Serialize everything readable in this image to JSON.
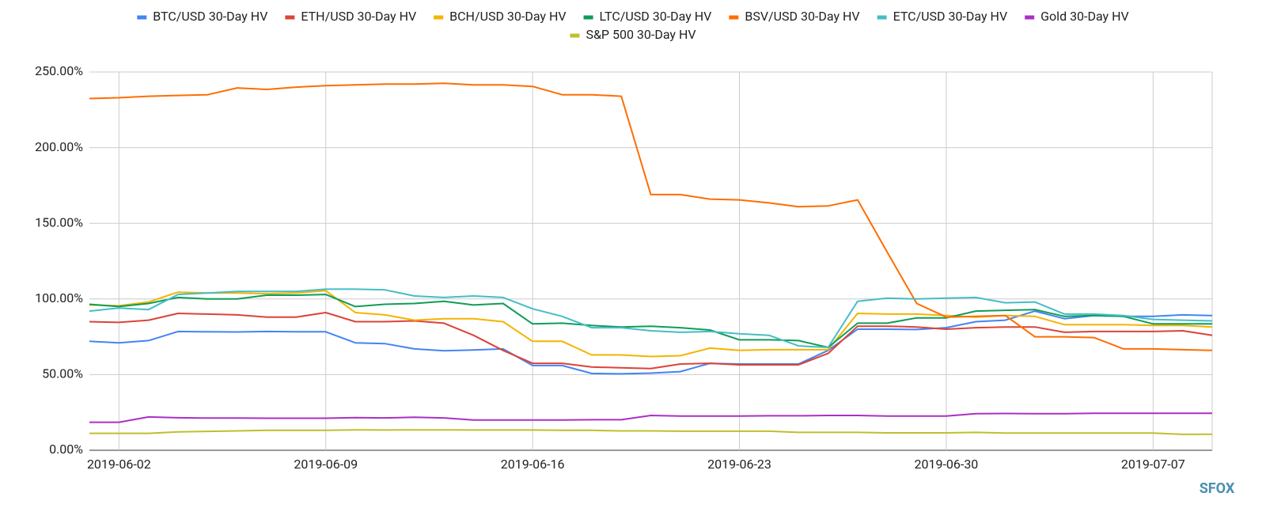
{
  "chart_data": {
    "type": "line",
    "x": [
      "2019-06-01",
      "2019-06-02",
      "2019-06-03",
      "2019-06-04",
      "2019-06-05",
      "2019-06-06",
      "2019-06-07",
      "2019-06-08",
      "2019-06-09",
      "2019-06-10",
      "2019-06-11",
      "2019-06-12",
      "2019-06-13",
      "2019-06-14",
      "2019-06-15",
      "2019-06-16",
      "2019-06-17",
      "2019-06-18",
      "2019-06-19",
      "2019-06-20",
      "2019-06-21",
      "2019-06-22",
      "2019-06-23",
      "2019-06-24",
      "2019-06-25",
      "2019-06-26",
      "2019-06-27",
      "2019-06-28",
      "2019-06-29",
      "2019-06-30",
      "2019-07-01",
      "2019-07-02",
      "2019-07-03",
      "2019-07-04",
      "2019-07-05",
      "2019-07-06",
      "2019-07-07",
      "2019-07-08",
      "2019-07-09"
    ],
    "xticks": [
      "2019-06-02",
      "2019-06-09",
      "2019-06-16",
      "2019-06-23",
      "2019-06-30",
      "2019-07-07"
    ],
    "ylim": [
      0,
      250
    ],
    "yticks": [
      {
        "value": 0,
        "label": "0.00%"
      },
      {
        "value": 50,
        "label": "50.00%"
      },
      {
        "value": 100,
        "label": "100.00%"
      },
      {
        "value": 150,
        "label": "150.00%"
      },
      {
        "value": 200,
        "label": "200.00%"
      },
      {
        "value": 250,
        "label": "250.00%"
      }
    ],
    "grid": true,
    "legend": "top",
    "series": [
      {
        "name": "BTC/USD 30-Day HV",
        "color": "#4285f4",
        "values": [
          72,
          71,
          72.5,
          78.5,
          78.3,
          78.2,
          78.5,
          78.3,
          78.3,
          71,
          70.5,
          67,
          65.8,
          66.3,
          67,
          56,
          56,
          50.8,
          50.5,
          51,
          52,
          57.5,
          57,
          57,
          57,
          66,
          80,
          80,
          79.8,
          81,
          85,
          86,
          92,
          87,
          89,
          88.5,
          88.5,
          89.5,
          89
        ]
      },
      {
        "name": "ETH/USD 30-Day HV",
        "color": "#db4437",
        "values": [
          85,
          84.5,
          86,
          90.5,
          90,
          89.5,
          88,
          88,
          91,
          85,
          85,
          85.5,
          84,
          76,
          66,
          57.5,
          57.5,
          55,
          54.5,
          54,
          57,
          57.5,
          56.5,
          56.5,
          56.5,
          64,
          82,
          82,
          81.5,
          80,
          81,
          81.5,
          81.5,
          78,
          78.5,
          78.5,
          78.5,
          79,
          76
        ]
      },
      {
        "name": "BCH/USD 30-Day HV",
        "color": "#f4b400",
        "values": [
          96,
          95.5,
          98,
          104.5,
          104,
          104,
          103.5,
          104,
          105.5,
          91,
          89.5,
          86,
          87,
          87,
          85,
          72,
          72,
          63,
          63,
          62,
          62.5,
          67.5,
          66,
          66.5,
          66.5,
          66.5,
          90.5,
          90,
          90,
          89,
          88,
          89,
          88.5,
          83,
          83,
          83,
          82.5,
          82.5,
          81.5
        ]
      },
      {
        "name": "LTC/USD 30-Day HV",
        "color": "#0f9d58",
        "values": [
          96.5,
          95,
          97,
          101,
          100,
          100,
          102.5,
          102.5,
          103,
          95,
          96.5,
          97,
          98.5,
          96,
          97,
          83.5,
          84,
          82.5,
          81.5,
          82,
          81,
          79.5,
          73,
          73,
          72.5,
          68,
          84,
          84,
          87.5,
          87.5,
          92,
          92.5,
          93,
          88.5,
          89,
          88.5,
          83.5,
          83.5,
          83.5
        ]
      },
      {
        "name": "BSV/USD 30-Day HV",
        "color": "#ff6d00",
        "values": [
          232.5,
          233,
          234,
          234.5,
          235,
          239.5,
          238.5,
          240,
          241,
          241.5,
          242,
          242,
          242.5,
          241.5,
          241.5,
          240.5,
          235,
          235,
          234,
          169,
          169,
          166,
          165.5,
          163.5,
          161,
          161.5,
          165.5,
          131,
          97,
          88,
          88.5,
          89,
          75,
          75,
          74.5,
          67,
          67,
          66.5,
          66
        ]
      },
      {
        "name": "ETC/USD 30-Day HV",
        "color": "#46bdc6",
        "values": [
          92,
          94,
          93,
          103,
          104,
          105,
          105,
          105,
          106.5,
          106.5,
          106,
          102,
          101,
          102,
          101,
          93.5,
          88.5,
          81,
          81,
          79,
          78,
          78.5,
          77,
          76,
          69,
          68,
          98.5,
          100.5,
          100,
          100.5,
          101,
          97.5,
          98,
          90,
          90,
          89,
          86.5,
          86,
          85.5
        ]
      },
      {
        "name": "Gold 30-Day HV",
        "color": "#ab30c4",
        "values": [
          18.5,
          18.5,
          22,
          21.5,
          21.3,
          21.3,
          21.2,
          21.2,
          21.2,
          21.6,
          21.4,
          21.8,
          21.4,
          20,
          20,
          20,
          20,
          20.2,
          20.2,
          23,
          22.6,
          22.6,
          22.6,
          22.8,
          22.8,
          23,
          23,
          22.6,
          22.6,
          22.6,
          24.2,
          24.3,
          24.2,
          24.2,
          24.5,
          24.5,
          24.5,
          24.5,
          24.5
        ]
      },
      {
        "name": "S&P 500 30-Day HV",
        "color": "#bfbf2e",
        "values": [
          11.2,
          11.2,
          11.2,
          12.2,
          12.5,
          12.8,
          13.2,
          13.2,
          13.2,
          13.5,
          13.4,
          13.5,
          13.5,
          13.4,
          13.4,
          13.4,
          13.2,
          13.2,
          12.8,
          12.8,
          12.6,
          12.6,
          12.6,
          12.6,
          11.8,
          11.8,
          11.8,
          11.5,
          11.5,
          11.5,
          11.8,
          11.4,
          11.4,
          11.4,
          11.4,
          11.4,
          11.4,
          10.5,
          10.6
        ]
      }
    ]
  },
  "watermark": "SFOX"
}
